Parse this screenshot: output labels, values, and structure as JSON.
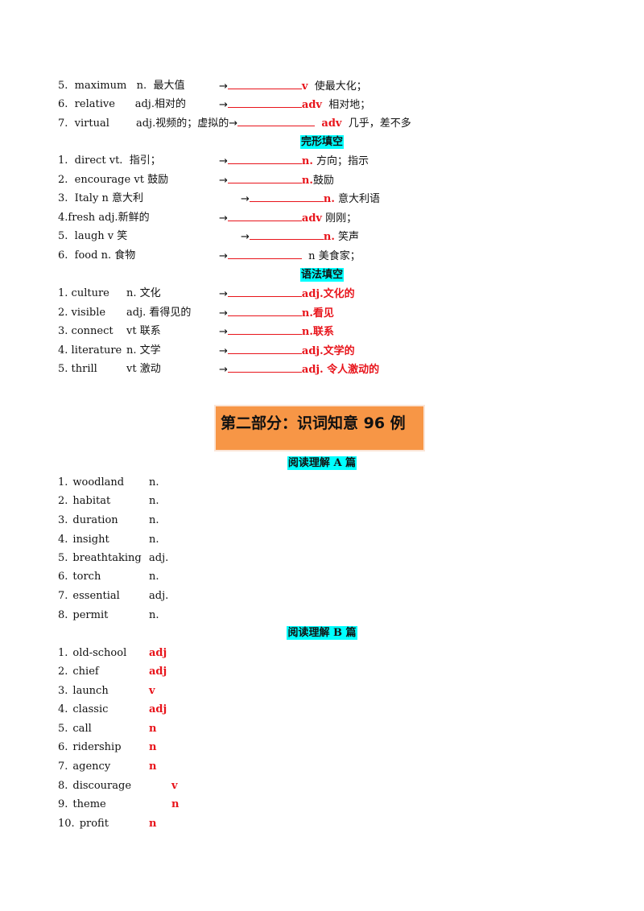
{
  "section1": {
    "rows": [
      {
        "num": "5.",
        "word": "maximum",
        "pos": "n.",
        "meaning": "最大值",
        "ans": "v",
        "after": "使最大化；"
      },
      {
        "num": "6.",
        "word": "relative",
        "pos": "adj.",
        "meaning": "相对的",
        "ans": "adv",
        "after": "相对地；"
      },
      {
        "num": "7.",
        "word": "virtual",
        "pos": "adj.",
        "meaning": "视频的；虚拟的",
        "ans": "adv",
        "after": "几乎，差不多"
      }
    ]
  },
  "heading_cloze": "完形填空",
  "section2": {
    "rows": [
      {
        "num": "1.",
        "word": "direct",
        "pos": "vt.",
        "meaning": "指引；",
        "ans": "n.",
        "after": "方向；指示"
      },
      {
        "num": "2.",
        "word": "encourage",
        "pos": "vt",
        "meaning": "鼓励",
        "ans": "n.",
        "after": "鼓励"
      },
      {
        "num": "3.",
        "word": "Italy",
        "pos": "n",
        "meaning": "意大利",
        "ans": "n.",
        "after": "意大利语"
      },
      {
        "num": "4.",
        "word": "fresh",
        "pos": "adj.",
        "meaning": "新鲜的",
        "ans": "adv",
        "after": "刚刚；"
      },
      {
        "num": "5.",
        "word": "laugh",
        "pos": "v",
        "meaning": "笑",
        "ans": "n.",
        "after": "笑声"
      },
      {
        "num": "6.",
        "word": "food",
        "pos": "n.",
        "meaning": "食物",
        "ans": "n",
        "after": "美食家；"
      }
    ]
  },
  "heading_grammar": "语法填空",
  "section3": {
    "rows": [
      {
        "num": "1.",
        "word": "culture",
        "pos": "n.",
        "meaning": "文化",
        "ans": "adj.文化的"
      },
      {
        "num": "2.",
        "word": "visible",
        "pos": "adj.",
        "meaning": "看得见的",
        "ans": "n.看见"
      },
      {
        "num": "3.",
        "word": "connect",
        "pos": "vt",
        "meaning": "联系",
        "ans": "n.联系"
      },
      {
        "num": "4.",
        "word": "literature",
        "pos": "n.",
        "meaning": "文学",
        "ans": "adj.文学的"
      },
      {
        "num": "5.",
        "word": "thrill",
        "pos": "vt",
        "meaning": "激动",
        "ans": "adj. 令人激动的"
      }
    ]
  },
  "arrow": "→",
  "banner": "第二部分：识词知意 96 例",
  "heading_readA": "阅读理解 A 篇",
  "readA": [
    {
      "num": "1.",
      "word": "woodland",
      "pos": "n."
    },
    {
      "num": "2.",
      "word": "habitat",
      "pos": "n."
    },
    {
      "num": "3.",
      "word": "duration",
      "pos": "n."
    },
    {
      "num": "4.",
      "word": "insight",
      "pos": "n."
    },
    {
      "num": "5.",
      "word": "breathtaking",
      "pos": "adj."
    },
    {
      "num": "6.",
      "word": "torch",
      "pos": "n."
    },
    {
      "num": "7.",
      "word": "essential",
      "pos": "adj."
    },
    {
      "num": "8.",
      "word": "permit",
      "pos": "n."
    }
  ],
  "heading_readB": "阅读理解 B 篇",
  "readB": [
    {
      "num": "1.",
      "word": "old-school",
      "pos": "adj"
    },
    {
      "num": "2.",
      "word": "chief",
      "pos": "adj"
    },
    {
      "num": "3.",
      "word": "launch",
      "pos": "v"
    },
    {
      "num": "4.",
      "word": "classic",
      "pos": "adj"
    },
    {
      "num": "5.",
      "word": "call",
      "pos": "n"
    },
    {
      "num": "6.",
      "word": "ridership",
      "pos": "n"
    },
    {
      "num": "7.",
      "word": "agency",
      "pos": "n"
    },
    {
      "num": "8.",
      "word": "discourage",
      "pos": "v"
    },
    {
      "num": "9.",
      "word": "theme",
      "pos": "n"
    },
    {
      "num": "10.",
      "word": "profit",
      "pos": "n"
    }
  ],
  "colors": {
    "answer": "#e8141b",
    "highlight": "#00ffff",
    "banner": "#f79646"
  }
}
